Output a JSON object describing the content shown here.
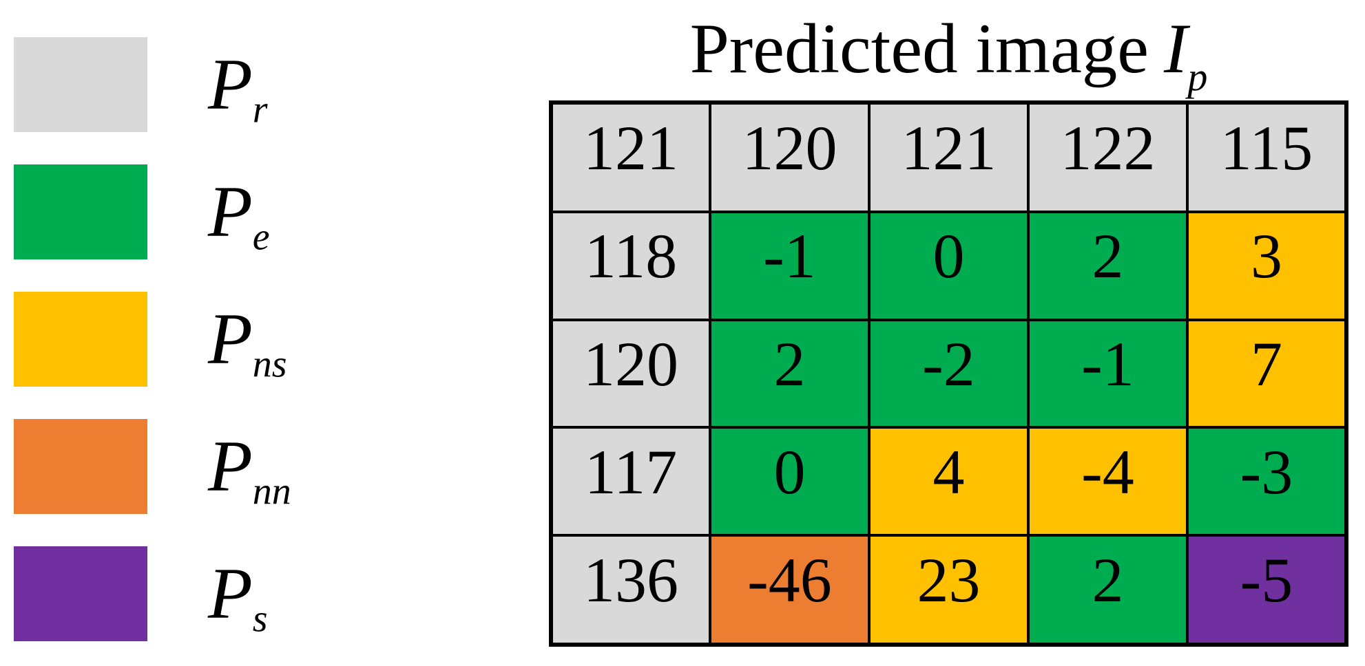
{
  "title": {
    "text": "Predicted image",
    "var": "I",
    "var_sub": "p"
  },
  "legend": [
    {
      "symbol": "P",
      "sub": "r",
      "color": "#d9d9d9"
    },
    {
      "symbol": "P",
      "sub": "e",
      "color": "#00ac50"
    },
    {
      "symbol": "P",
      "sub": "ns",
      "color": "#ffc000"
    },
    {
      "symbol": "P",
      "sub": "nn",
      "color": "#ed7d31"
    },
    {
      "symbol": "P",
      "sub": "s",
      "color": "#7030a0"
    }
  ],
  "palette": {
    "r": "#d9d9d9",
    "e": "#00ac50",
    "ns": "#ffc000",
    "nn": "#ed7d31",
    "s": "#7030a0"
  },
  "grid": {
    "rows": [
      [
        {
          "v": "121",
          "c": "r"
        },
        {
          "v": "120",
          "c": "r"
        },
        {
          "v": "121",
          "c": "ns_gray_placeholder_unused_r",
          "cc": "r"
        },
        {
          "v": "122",
          "c": "r"
        },
        {
          "v": "115",
          "c": "r"
        }
      ],
      [
        {
          "v": "118",
          "c": "r"
        },
        {
          "v": "-1",
          "c": "e"
        },
        {
          "v": "0",
          "c": "e"
        },
        {
          "v": "2",
          "c": "e"
        },
        {
          "v": "3",
          "c": "ns"
        }
      ],
      [
        {
          "v": "120",
          "c": "r"
        },
        {
          "v": "2",
          "c": "e"
        },
        {
          "v": "-2",
          "c": "e"
        },
        {
          "v": "-1",
          "c": "e"
        },
        {
          "v": "7",
          "c": "ns"
        }
      ],
      [
        {
          "v": "117",
          "c": "r"
        },
        {
          "v": "0",
          "c": "e"
        },
        {
          "v": "4",
          "c": "ns"
        },
        {
          "v": "-4",
          "c": "ns"
        },
        {
          "v": "-3",
          "c": "e"
        }
      ],
      [
        {
          "v": "136",
          "c": "r"
        },
        {
          "v": "-46",
          "c": "nn"
        },
        {
          "v": "23",
          "c": "ns"
        },
        {
          "v": "2",
          "c": "e"
        },
        {
          "v": "-5",
          "c": "s"
        }
      ]
    ]
  },
  "chart_data": {
    "type": "heatmap",
    "title": "Predicted image I_p",
    "matrix": [
      [
        121,
        120,
        121,
        122,
        115
      ],
      [
        118,
        -1,
        0,
        2,
        3
      ],
      [
        120,
        2,
        -2,
        -1,
        7
      ],
      [
        117,
        0,
        4,
        -4,
        -3
      ],
      [
        136,
        -46,
        23,
        2,
        -5
      ]
    ],
    "cell_categories": [
      [
        "Pr",
        "Pr",
        "Pr",
        "Pr",
        "Pr"
      ],
      [
        "Pr",
        "Pe",
        "Pe",
        "Pe",
        "Pns"
      ],
      [
        "Pr",
        "Pe",
        "Pe",
        "Pe",
        "Pns"
      ],
      [
        "Pr",
        "Pe",
        "Pns",
        "Pns",
        "Pe"
      ],
      [
        "Pr",
        "Pnn",
        "Pns",
        "Pe",
        "Ps"
      ]
    ],
    "legend_entries": [
      {
        "label": "P_r",
        "color": "#d9d9d9"
      },
      {
        "label": "P_e",
        "color": "#00ac50"
      },
      {
        "label": "P_ns",
        "color": "#ffc000"
      },
      {
        "label": "P_nn",
        "color": "#ed7d31"
      },
      {
        "label": "P_s",
        "color": "#7030a0"
      }
    ],
    "legend_position": "left",
    "grid_lines": "black solid borders"
  }
}
